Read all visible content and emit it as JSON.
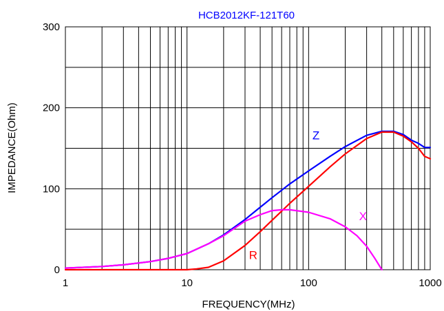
{
  "chart_data": {
    "type": "line",
    "title": "HCB2012KF-121T60",
    "xlabel": "FREQUENCY(MHz)",
    "ylabel": "IMPEDANCE(Ohm)",
    "x_scale": "log",
    "xlim": [
      1,
      1000
    ],
    "ylim": [
      0,
      300
    ],
    "x_ticks": [
      1,
      10,
      100,
      1000
    ],
    "x_tick_labels": [
      "1",
      "10",
      "100",
      "1000"
    ],
    "y_ticks": [
      0,
      100,
      200,
      300
    ],
    "y_tick_labels": [
      "0",
      "100",
      "200",
      "300"
    ],
    "grid": true,
    "colors": {
      "title": "#0000ff",
      "Z": "#0000ff",
      "R": "#ff0000",
      "X": "#ff00ff",
      "grid": "#000000"
    },
    "series": [
      {
        "name": "Z",
        "color": "#0000ff",
        "x": [
          1,
          2,
          3,
          5,
          7,
          10,
          15,
          20,
          30,
          50,
          70,
          100,
          150,
          200,
          300,
          400,
          500,
          600,
          700,
          800,
          900,
          1000
        ],
        "y": [
          2,
          4,
          6,
          10,
          14,
          20,
          32,
          43,
          62,
          89,
          106,
          122,
          140,
          152,
          166,
          171,
          171,
          167,
          160,
          156,
          151,
          151
        ]
      },
      {
        "name": "R",
        "color": "#ff0000",
        "x": [
          1,
          5,
          10,
          12,
          15,
          20,
          30,
          40,
          50,
          70,
          100,
          150,
          200,
          300,
          400,
          500,
          600,
          700,
          800,
          900,
          1000
        ],
        "y": [
          0,
          0,
          0,
          1,
          3,
          11,
          30,
          47,
          61,
          82,
          103,
          127,
          143,
          162,
          170,
          170,
          165,
          158,
          150,
          140,
          137
        ]
      },
      {
        "name": "X",
        "color": "#ff00ff",
        "x": [
          1,
          2,
          3,
          5,
          7,
          10,
          15,
          20,
          30,
          40,
          50,
          60,
          70,
          100,
          150,
          200,
          250,
          300,
          350,
          400
        ],
        "y": [
          2,
          4,
          6,
          10,
          14,
          20,
          32,
          42,
          60,
          68,
          73,
          74,
          74,
          71,
          63,
          53,
          42,
          29,
          14,
          0
        ]
      }
    ],
    "annotations": [
      {
        "text": "Z",
        "x": 115,
        "y": 161,
        "color": "#0000ff"
      },
      {
        "text": "R",
        "x": 35,
        "y": 13,
        "color": "#ff0000"
      },
      {
        "text": "X",
        "x": 280,
        "y": 61,
        "color": "#ff00ff"
      }
    ]
  }
}
